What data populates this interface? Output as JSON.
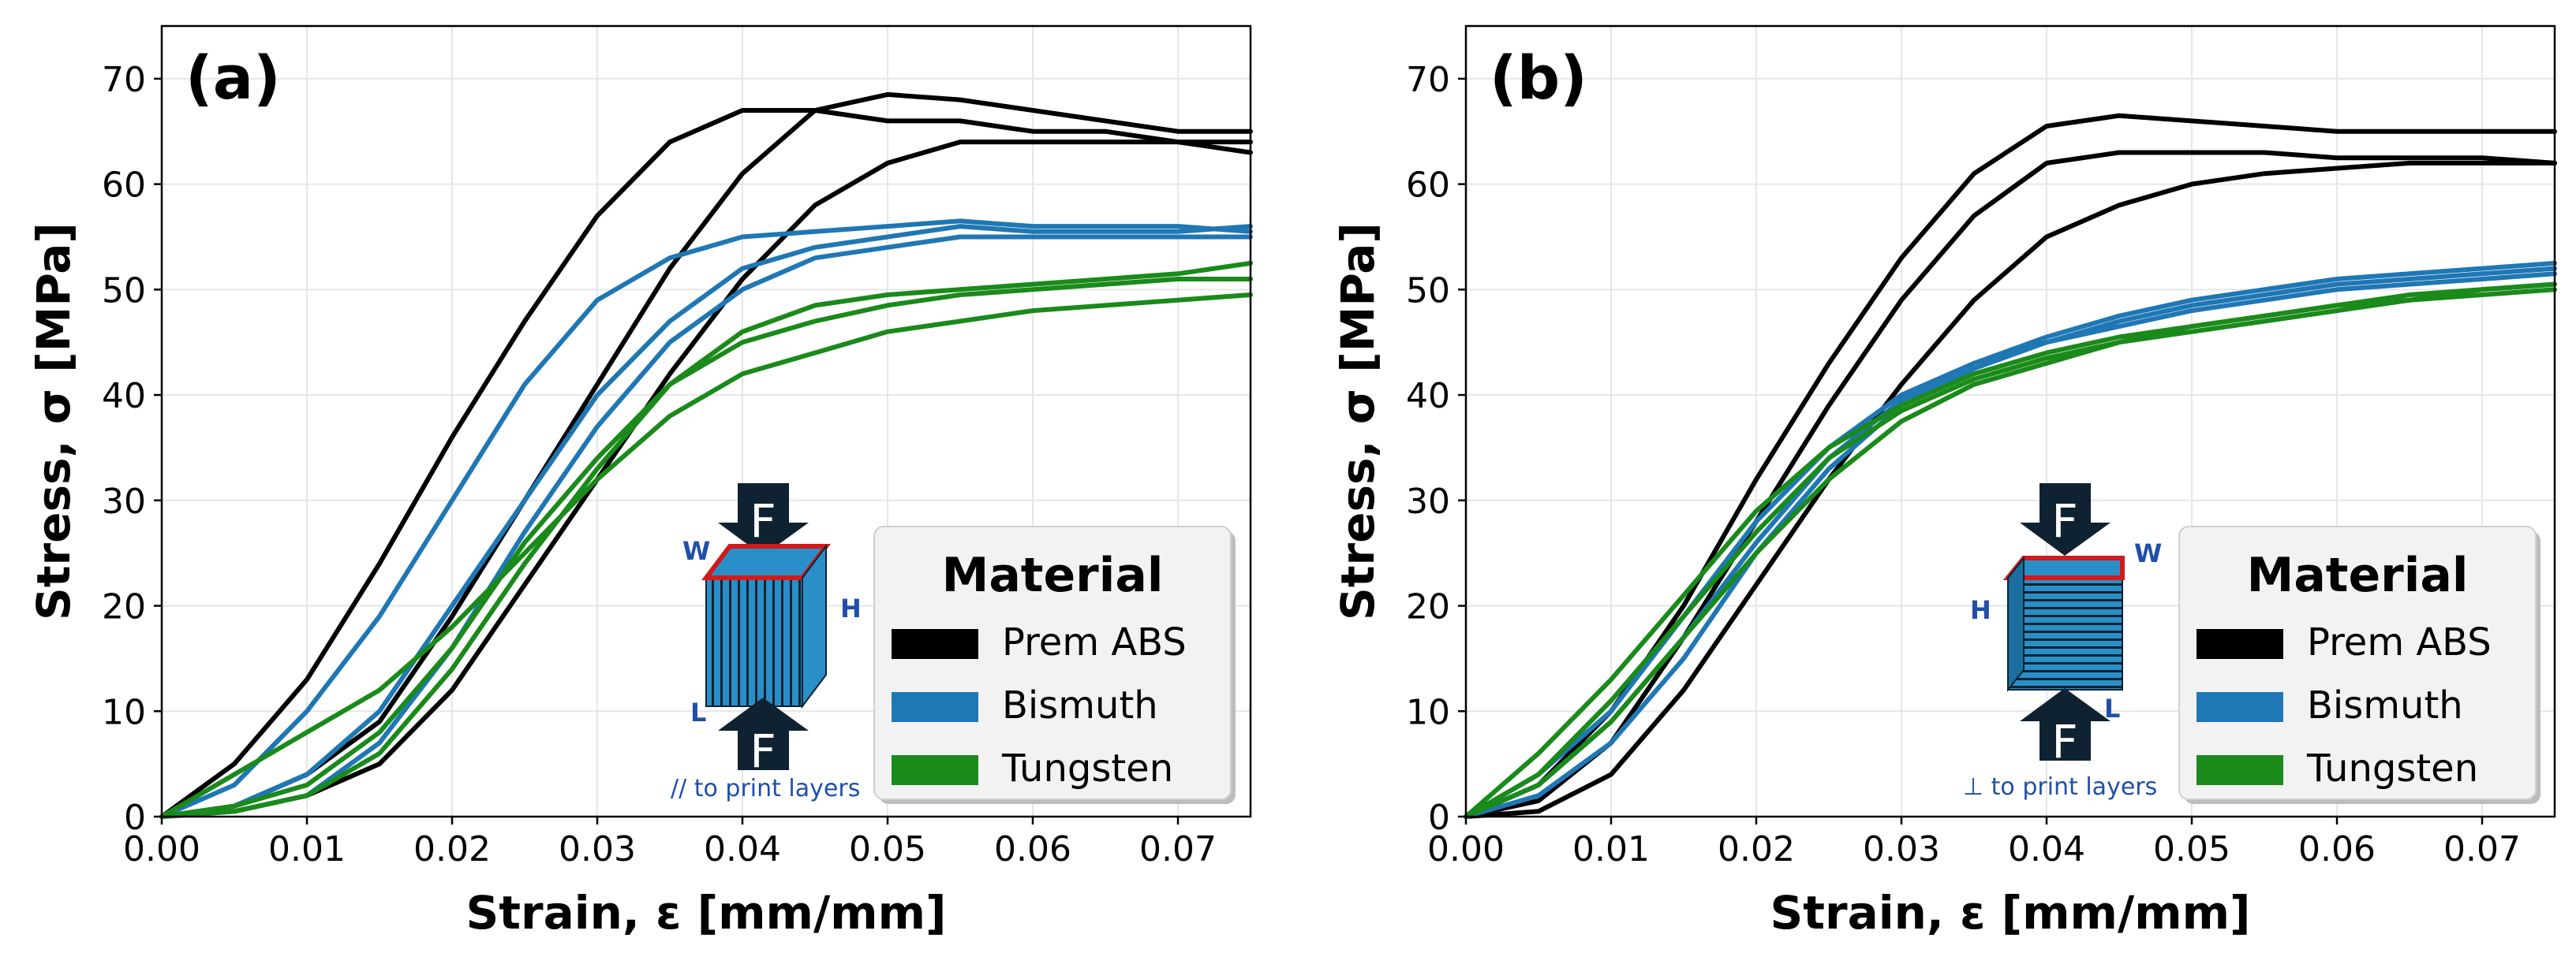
{
  "chart_data": [
    {
      "type": "line",
      "panel_label": "(a)",
      "xlabel": "Strain, ε [mm/mm]",
      "ylabel": "Stress, σ [MPa]",
      "xlim": [
        0,
        0.075
      ],
      "ylim": [
        0,
        75
      ],
      "xticks": [
        "0.00",
        "0.01",
        "0.02",
        "0.03",
        "0.04",
        "0.05",
        "0.06",
        "0.07"
      ],
      "xtick_values": [
        0,
        0.01,
        0.02,
        0.03,
        0.04,
        0.05,
        0.06,
        0.07
      ],
      "yticks": [
        "0",
        "10",
        "20",
        "30",
        "40",
        "50",
        "60",
        "70"
      ],
      "ytick_values": [
        0,
        10,
        20,
        30,
        40,
        50,
        60,
        70
      ],
      "grid": true,
      "legend": {
        "title": "Material",
        "entries": [
          "Prem ABS",
          "Bismuth",
          "Tungsten"
        ],
        "position": "lower-right"
      },
      "orientation_note": "// to print layers",
      "force_label": "F",
      "dimension_labels": {
        "w": "W",
        "h": "H",
        "l": "L"
      },
      "series": [
        {
          "name": "Prem ABS",
          "color": "#000000",
          "x": [
            0,
            0.005,
            0.01,
            0.015,
            0.02,
            0.025,
            0.03,
            0.035,
            0.04,
            0.045,
            0.05,
            0.055,
            0.06,
            0.065,
            0.07,
            0.075
          ],
          "y": [
            0,
            5,
            13,
            24,
            36,
            47,
            57,
            64,
            67,
            67,
            66,
            66,
            65,
            65,
            64,
            63
          ]
        },
        {
          "name": "Prem ABS",
          "color": "#000000",
          "x": [
            0,
            0.005,
            0.01,
            0.015,
            0.02,
            0.025,
            0.03,
            0.035,
            0.04,
            0.045,
            0.05,
            0.055,
            0.06,
            0.065,
            0.07,
            0.075
          ],
          "y": [
            0,
            1,
            4,
            9,
            19,
            30,
            41,
            52,
            61,
            67,
            68.5,
            68,
            67,
            66,
            65,
            65
          ]
        },
        {
          "name": "Prem ABS",
          "color": "#000000",
          "x": [
            0,
            0.005,
            0.01,
            0.015,
            0.02,
            0.025,
            0.03,
            0.035,
            0.04,
            0.045,
            0.05,
            0.055,
            0.06,
            0.065,
            0.07,
            0.075
          ],
          "y": [
            0,
            0.5,
            2,
            5,
            12,
            22,
            32,
            42,
            51,
            58,
            62,
            64,
            64,
            64,
            64,
            64
          ]
        },
        {
          "name": "Bismuth",
          "color": "#1f77b4",
          "x": [
            0,
            0.005,
            0.01,
            0.015,
            0.02,
            0.025,
            0.03,
            0.035,
            0.04,
            0.045,
            0.05,
            0.055,
            0.06,
            0.065,
            0.07,
            0.075
          ],
          "y": [
            0,
            3,
            10,
            19,
            30,
            41,
            49,
            53,
            55,
            55.5,
            56,
            56.5,
            56,
            56,
            56,
            55.5
          ]
        },
        {
          "name": "Bismuth",
          "color": "#1f77b4",
          "x": [
            0,
            0.005,
            0.01,
            0.015,
            0.02,
            0.025,
            0.03,
            0.035,
            0.04,
            0.045,
            0.05,
            0.055,
            0.06,
            0.065,
            0.07,
            0.075
          ],
          "y": [
            0,
            1,
            4,
            10,
            20,
            30,
            40,
            47,
            52,
            54,
            55,
            56,
            55.5,
            55.5,
            55.5,
            56
          ]
        },
        {
          "name": "Bismuth",
          "color": "#1f77b4",
          "x": [
            0,
            0.005,
            0.01,
            0.015,
            0.02,
            0.025,
            0.03,
            0.035,
            0.04,
            0.045,
            0.05,
            0.055,
            0.06,
            0.065,
            0.07,
            0.075
          ],
          "y": [
            0,
            0.5,
            2,
            7,
            16,
            27,
            37,
            45,
            50,
            53,
            54,
            55,
            55,
            55,
            55,
            55
          ]
        },
        {
          "name": "Tungsten",
          "color": "#1a8a1a",
          "x": [
            0,
            0.005,
            0.01,
            0.015,
            0.02,
            0.025,
            0.03,
            0.035,
            0.04,
            0.045,
            0.05,
            0.055,
            0.06,
            0.065,
            0.07,
            0.075
          ],
          "y": [
            0,
            4,
            8,
            12,
            18,
            25,
            32,
            38,
            42,
            44,
            46,
            47,
            48,
            48.5,
            49,
            49.5
          ]
        },
        {
          "name": "Tungsten",
          "color": "#1a8a1a",
          "x": [
            0,
            0.005,
            0.01,
            0.015,
            0.02,
            0.025,
            0.03,
            0.035,
            0.04,
            0.045,
            0.05,
            0.055,
            0.06,
            0.065,
            0.07,
            0.075
          ],
          "y": [
            0,
            1,
            3,
            8,
            16,
            26,
            34,
            41,
            45,
            47,
            48.5,
            49.5,
            50,
            50.5,
            51,
            51
          ]
        },
        {
          "name": "Tungsten",
          "color": "#1a8a1a",
          "x": [
            0,
            0.005,
            0.01,
            0.015,
            0.02,
            0.025,
            0.03,
            0.035,
            0.04,
            0.045,
            0.05,
            0.055,
            0.06,
            0.065,
            0.07,
            0.075
          ],
          "y": [
            0,
            0.5,
            2,
            6,
            14,
            24,
            33,
            41,
            46,
            48.5,
            49.5,
            50,
            50.5,
            51,
            51.5,
            52.5
          ]
        }
      ]
    },
    {
      "type": "line",
      "panel_label": "(b)",
      "xlabel": "Strain, ε [mm/mm]",
      "ylabel": "Stress, σ [MPa]",
      "xlim": [
        0,
        0.075
      ],
      "ylim": [
        0,
        75
      ],
      "xticks": [
        "0.00",
        "0.01",
        "0.02",
        "0.03",
        "0.04",
        "0.05",
        "0.06",
        "0.07"
      ],
      "xtick_values": [
        0,
        0.01,
        0.02,
        0.03,
        0.04,
        0.05,
        0.06,
        0.07
      ],
      "yticks": [
        "0",
        "10",
        "20",
        "30",
        "40",
        "50",
        "60",
        "70"
      ],
      "ytick_values": [
        0,
        10,
        20,
        30,
        40,
        50,
        60,
        70
      ],
      "grid": true,
      "legend": {
        "title": "Material",
        "entries": [
          "Prem ABS",
          "Bismuth",
          "Tungsten"
        ],
        "position": "lower-right"
      },
      "orientation_note": "⊥ to print layers",
      "force_label": "F",
      "dimension_labels": {
        "w": "W",
        "h": "H",
        "l": "L"
      },
      "series": [
        {
          "name": "Prem ABS",
          "color": "#000000",
          "x": [
            0,
            0.005,
            0.01,
            0.015,
            0.02,
            0.025,
            0.03,
            0.035,
            0.04,
            0.045,
            0.05,
            0.055,
            0.06,
            0.065,
            0.07,
            0.075
          ],
          "y": [
            0,
            3,
            10,
            20,
            32,
            43,
            53,
            61,
            65.5,
            66.5,
            66,
            65.5,
            65,
            65,
            65,
            65
          ]
        },
        {
          "name": "Prem ABS",
          "color": "#000000",
          "x": [
            0,
            0.005,
            0.01,
            0.015,
            0.02,
            0.025,
            0.03,
            0.035,
            0.04,
            0.045,
            0.05,
            0.055,
            0.06,
            0.065,
            0.07,
            0.075
          ],
          "y": [
            0,
            1.5,
            7,
            17,
            28,
            39,
            49,
            57,
            62,
            63,
            63,
            63,
            62.5,
            62.5,
            62.5,
            62
          ]
        },
        {
          "name": "Prem ABS",
          "color": "#000000",
          "x": [
            0,
            0.005,
            0.01,
            0.015,
            0.02,
            0.025,
            0.03,
            0.035,
            0.04,
            0.045,
            0.05,
            0.055,
            0.06,
            0.065,
            0.07,
            0.075
          ],
          "y": [
            0,
            0.5,
            4,
            12,
            22,
            32,
            41,
            49,
            55,
            58,
            60,
            61,
            61.5,
            62,
            62,
            62
          ]
        },
        {
          "name": "Bismuth",
          "color": "#1f77b4",
          "x": [
            0,
            0.005,
            0.01,
            0.015,
            0.02,
            0.025,
            0.03,
            0.035,
            0.04,
            0.045,
            0.05,
            0.055,
            0.06,
            0.065,
            0.07,
            0.075
          ],
          "y": [
            0,
            4,
            10,
            19,
            28,
            35,
            40,
            43,
            45.5,
            47.5,
            49,
            50,
            51,
            51.5,
            52,
            52.5
          ]
        },
        {
          "name": "Bismuth",
          "color": "#1f77b4",
          "x": [
            0,
            0.005,
            0.01,
            0.015,
            0.02,
            0.025,
            0.03,
            0.035,
            0.04,
            0.045,
            0.05,
            0.055,
            0.06,
            0.065,
            0.07,
            0.075
          ],
          "y": [
            0,
            3,
            9,
            17,
            26,
            34,
            39.5,
            43,
            45,
            47,
            48.5,
            49.5,
            50.5,
            51,
            51.5,
            52
          ]
        },
        {
          "name": "Bismuth",
          "color": "#1f77b4",
          "x": [
            0,
            0.005,
            0.01,
            0.015,
            0.02,
            0.025,
            0.03,
            0.035,
            0.04,
            0.045,
            0.05,
            0.055,
            0.06,
            0.065,
            0.07,
            0.075
          ],
          "y": [
            0,
            2,
            7,
            15,
            25,
            33,
            39,
            42.5,
            45,
            46.5,
            48,
            49,
            50,
            50.5,
            51,
            51.5
          ]
        },
        {
          "name": "Tungsten",
          "color": "#1a8a1a",
          "x": [
            0,
            0.005,
            0.01,
            0.015,
            0.02,
            0.025,
            0.03,
            0.035,
            0.04,
            0.045,
            0.05,
            0.055,
            0.06,
            0.065,
            0.07,
            0.075
          ],
          "y": [
            0,
            6,
            13,
            21,
            29,
            35,
            39,
            42,
            44,
            45.5,
            46.5,
            47.5,
            48.5,
            49.5,
            50,
            50.5
          ]
        },
        {
          "name": "Tungsten",
          "color": "#1a8a1a",
          "x": [
            0,
            0.005,
            0.01,
            0.015,
            0.02,
            0.025,
            0.03,
            0.035,
            0.04,
            0.045,
            0.05,
            0.055,
            0.06,
            0.065,
            0.07,
            0.075
          ],
          "y": [
            0,
            4,
            11,
            19,
            27,
            34,
            38.5,
            41.5,
            43.5,
            45,
            46.5,
            47.5,
            48.5,
            49,
            50,
            50.5
          ]
        },
        {
          "name": "Tungsten",
          "color": "#1a8a1a",
          "x": [
            0,
            0.005,
            0.01,
            0.015,
            0.02,
            0.025,
            0.03,
            0.035,
            0.04,
            0.045,
            0.05,
            0.055,
            0.06,
            0.065,
            0.07,
            0.075
          ],
          "y": [
            0,
            3,
            9,
            17,
            25,
            32,
            37.5,
            41,
            43,
            45,
            46,
            47,
            48,
            49,
            49.5,
            50
          ]
        }
      ]
    }
  ]
}
